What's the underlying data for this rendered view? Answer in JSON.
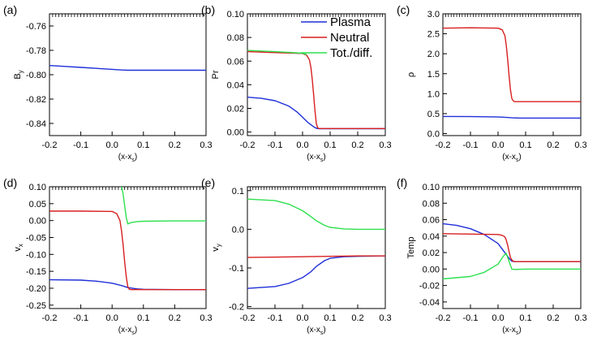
{
  "legend": [
    {
      "name": "Plasma",
      "color": "#1f2fd8"
    },
    {
      "name": "Neutral",
      "color": "#d81f1f"
    },
    {
      "name": "Tot./diff.",
      "color": "#2fe04f"
    }
  ],
  "chart_data": [
    {
      "type": "line",
      "panel_label": "(a)",
      "xlabel": "(x-x",
      "xlabel_sub": "s",
      "xlabel_end": ")",
      "ylabel": "B",
      "ylabel_sub": "y",
      "xlim": [
        -0.2,
        0.3
      ],
      "ylim": [
        -0.85,
        -0.75
      ],
      "xticks": [
        -0.2,
        -0.1,
        0.0,
        0.1,
        0.2,
        0.3
      ],
      "xtick_labels": [
        "-0.2",
        "-0.1",
        "0.0",
        "0.1",
        "0.2",
        "0.3"
      ],
      "yticks": [
        -0.76,
        -0.78,
        -0.8,
        -0.82,
        -0.84
      ],
      "ytick_labels": [
        "-0.76",
        "-0.78",
        "-0.80",
        "-0.82",
        "-0.84"
      ],
      "series": [
        {
          "name": "Plasma",
          "color": "#1f2fd8",
          "x": [
            -0.2,
            -0.15,
            -0.1,
            -0.05,
            0.0,
            0.03,
            0.05,
            0.08,
            0.1,
            0.2,
            0.3
          ],
          "y": [
            -0.7925,
            -0.7932,
            -0.794,
            -0.7948,
            -0.7956,
            -0.7961,
            -0.7963,
            -0.7963,
            -0.7963,
            -0.7963,
            -0.7963
          ]
        }
      ]
    },
    {
      "type": "line",
      "panel_label": "(b)",
      "xlabel": "(x-x",
      "xlabel_sub": "s",
      "xlabel_end": ")",
      "ylabel": "Pr",
      "ylabel_sub": "",
      "xlim": [
        -0.2,
        0.3
      ],
      "ylim": [
        -0.003,
        0.1
      ],
      "xticks": [
        -0.2,
        -0.1,
        0.0,
        0.1,
        0.2,
        0.3
      ],
      "xtick_labels": [
        "-0.2",
        "-0.1",
        "0.0",
        "0.1",
        "0.2",
        "0.3"
      ],
      "yticks": [
        0.0,
        0.02,
        0.04,
        0.06,
        0.08,
        0.1
      ],
      "ytick_labels": [
        "0.00",
        "0.02",
        "0.04",
        "0.06",
        "0.08",
        "0.10"
      ],
      "series": [
        {
          "name": "Plasma",
          "color": "#1f2fd8",
          "x": [
            -0.2,
            -0.15,
            -0.1,
            -0.05,
            -0.02,
            0.0,
            0.02,
            0.04,
            0.05,
            0.06,
            0.1,
            0.2,
            0.3
          ],
          "y": [
            0.0295,
            0.0285,
            0.0265,
            0.022,
            0.017,
            0.0125,
            0.008,
            0.0045,
            0.0032,
            0.0028,
            0.0028,
            0.0028,
            0.0028
          ]
        },
        {
          "name": "Neutral",
          "color": "#d81f1f",
          "x": [
            -0.2,
            -0.1,
            0.0,
            0.015,
            0.025,
            0.03,
            0.035,
            0.04,
            0.045,
            0.05,
            0.055,
            0.06,
            0.1,
            0.2,
            0.3
          ],
          "y": [
            0.068,
            0.0672,
            0.0665,
            0.065,
            0.061,
            0.055,
            0.045,
            0.032,
            0.018,
            0.007,
            0.0035,
            0.003,
            0.003,
            0.003,
            0.003
          ]
        },
        {
          "name": "Tot./diff.",
          "color": "#2fe04f",
          "x": [
            -0.2,
            -0.1,
            0.0,
            0.015
          ],
          "y": [
            0.069,
            0.068,
            0.0667,
            0.0655
          ]
        }
      ]
    },
    {
      "type": "line",
      "panel_label": "(c)",
      "xlabel": "(x-x",
      "xlabel_sub": "s",
      "xlabel_end": ")",
      "ylabel": "ρ",
      "ylabel_sub": "",
      "xlim": [
        -0.2,
        0.3
      ],
      "ylim": [
        -0.05,
        3.0
      ],
      "xticks": [
        -0.2,
        -0.1,
        0.0,
        0.1,
        0.2,
        0.3
      ],
      "xtick_labels": [
        "-0.2",
        "-0.1",
        "0.0",
        "0.1",
        "0.2",
        "0.3"
      ],
      "yticks": [
        0.0,
        0.5,
        1.0,
        1.5,
        2.0,
        2.5,
        3.0
      ],
      "ytick_labels": [
        "0.0",
        "0.5",
        "1.0",
        "1.5",
        "2.0",
        "2.5",
        "3.0"
      ],
      "series": [
        {
          "name": "Plasma",
          "color": "#1f2fd8",
          "x": [
            -0.2,
            -0.1,
            0.0,
            0.03,
            0.05,
            0.08,
            0.2,
            0.3
          ],
          "y": [
            0.43,
            0.425,
            0.415,
            0.405,
            0.395,
            0.39,
            0.39,
            0.39
          ]
        },
        {
          "name": "Neutral",
          "color": "#d81f1f",
          "x": [
            -0.2,
            -0.1,
            0.0,
            0.015,
            0.025,
            0.03,
            0.035,
            0.04,
            0.045,
            0.05,
            0.055,
            0.06,
            0.1,
            0.2,
            0.3
          ],
          "y": [
            2.64,
            2.65,
            2.64,
            2.6,
            2.45,
            2.2,
            1.85,
            1.45,
            1.1,
            0.88,
            0.82,
            0.8,
            0.8,
            0.8,
            0.8
          ]
        }
      ]
    },
    {
      "type": "line",
      "panel_label": "(d)",
      "xlabel": "(x-x",
      "xlabel_sub": "s",
      "xlabel_end": ")",
      "ylabel": "v",
      "ylabel_sub": "x",
      "xlim": [
        -0.2,
        0.3
      ],
      "ylim": [
        -0.26,
        0.1
      ],
      "xticks": [
        -0.2,
        -0.1,
        0.0,
        0.1,
        0.2,
        0.3
      ],
      "xtick_labels": [
        "-0.2",
        "-0.1",
        "0.0",
        "0.1",
        "0.2",
        "0.3"
      ],
      "yticks": [
        0.1,
        0.05,
        0.0,
        -0.05,
        -0.1,
        -0.15,
        -0.2,
        -0.25
      ],
      "ytick_labels": [
        "0.10",
        "0.05",
        "0.00",
        "-0.05",
        "-0.10",
        "-0.15",
        "-0.20",
        "-0.25"
      ],
      "series": [
        {
          "name": "Plasma",
          "color": "#1f2fd8",
          "x": [
            -0.2,
            -0.1,
            -0.05,
            0.0,
            0.03,
            0.05,
            0.08,
            0.1,
            0.2,
            0.3
          ],
          "y": [
            -0.175,
            -0.176,
            -0.179,
            -0.185,
            -0.192,
            -0.198,
            -0.202,
            -0.203,
            -0.204,
            -0.204
          ]
        },
        {
          "name": "Neutral",
          "color": "#d81f1f",
          "x": [
            -0.2,
            -0.1,
            0.0,
            0.015,
            0.025,
            0.03,
            0.035,
            0.04,
            0.045,
            0.05,
            0.055,
            0.06,
            0.1,
            0.2,
            0.3
          ],
          "y": [
            0.028,
            0.028,
            0.027,
            0.02,
            0.0,
            -0.03,
            -0.07,
            -0.12,
            -0.165,
            -0.195,
            -0.203,
            -0.204,
            -0.204,
            -0.204,
            -0.204
          ]
        },
        {
          "name": "Tot./diff.",
          "color": "#2fe04f",
          "x": [
            0.03,
            0.035,
            0.04,
            0.045,
            0.05,
            0.06,
            0.08,
            0.1,
            0.2,
            0.3
          ],
          "y": [
            0.1,
            0.08,
            0.045,
            0.01,
            -0.01,
            -0.006,
            -0.003,
            -0.002,
            -0.001,
            -0.001
          ]
        }
      ]
    },
    {
      "type": "line",
      "panel_label": "(e)",
      "xlabel": "(x-x",
      "xlabel_sub": "s",
      "xlabel_end": ")",
      "ylabel": "v",
      "ylabel_sub": "y",
      "xlim": [
        -0.2,
        0.3
      ],
      "ylim": [
        -0.205,
        0.11
      ],
      "xticks": [
        -0.2,
        -0.1,
        0.0,
        0.1,
        0.2,
        0.3
      ],
      "xtick_labels": [
        "-0.2",
        "-0.1",
        "0.0",
        "0.1",
        "0.2",
        "0.3"
      ],
      "yticks": [
        0.1,
        0.0,
        -0.1,
        -0.2
      ],
      "ytick_labels": [
        "0.1",
        "0.0",
        "-0.1",
        "-0.2"
      ],
      "series": [
        {
          "name": "Plasma",
          "color": "#1f2fd8",
          "x": [
            -0.2,
            -0.1,
            -0.05,
            0.0,
            0.03,
            0.05,
            0.08,
            0.1,
            0.15,
            0.2,
            0.3
          ],
          "y": [
            -0.153,
            -0.148,
            -0.14,
            -0.125,
            -0.11,
            -0.096,
            -0.081,
            -0.075,
            -0.071,
            -0.07,
            -0.069
          ]
        },
        {
          "name": "Neutral",
          "color": "#d81f1f",
          "x": [
            -0.2,
            -0.1,
            0.0,
            0.1,
            0.2,
            0.3
          ],
          "y": [
            -0.073,
            -0.072,
            -0.071,
            -0.07,
            -0.069,
            -0.069
          ]
        },
        {
          "name": "Tot./diff.",
          "color": "#2fe04f",
          "x": [
            -0.2,
            -0.1,
            -0.05,
            0.0,
            0.03,
            0.05,
            0.08,
            0.1,
            0.15,
            0.2,
            0.3
          ],
          "y": [
            0.078,
            0.074,
            0.065,
            0.048,
            0.033,
            0.022,
            0.01,
            0.005,
            0.001,
            0.0,
            0.0
          ]
        }
      ]
    },
    {
      "type": "line",
      "panel_label": "(f)",
      "xlabel": "(x-x",
      "xlabel_sub": "s",
      "xlabel_end": ")",
      "ylabel": "Temp",
      "ylabel_sub": "",
      "xlim": [
        -0.2,
        0.3
      ],
      "ylim": [
        -0.048,
        0.1
      ],
      "xticks": [
        -0.2,
        -0.1,
        0.0,
        0.1,
        0.2,
        0.3
      ],
      "xtick_labels": [
        "-0.2",
        "-0.1",
        "0.0",
        "0.1",
        "0.2",
        "0.3"
      ],
      "yticks": [
        0.1,
        0.08,
        0.06,
        0.04,
        0.02,
        0.0,
        -0.02,
        -0.04
      ],
      "ytick_labels": [
        "0.10",
        "0.08",
        "0.06",
        "0.04",
        "0.02",
        "0.00",
        "-0.02",
        "-0.04"
      ],
      "series": [
        {
          "name": "Plasma",
          "color": "#1f2fd8",
          "x": [
            -0.2,
            -0.15,
            -0.1,
            -0.05,
            0.0,
            0.02,
            0.04,
            0.05,
            0.06,
            0.1,
            0.2,
            0.3
          ],
          "y": [
            0.055,
            0.053,
            0.049,
            0.042,
            0.031,
            0.022,
            0.013,
            0.0095,
            0.009,
            0.009,
            0.009,
            0.009
          ]
        },
        {
          "name": "Neutral",
          "color": "#d81f1f",
          "x": [
            -0.2,
            -0.1,
            0.0,
            0.015,
            0.025,
            0.03,
            0.035,
            0.04,
            0.045,
            0.05,
            0.055,
            0.06,
            0.1,
            0.2,
            0.3
          ],
          "y": [
            0.043,
            0.0425,
            0.042,
            0.041,
            0.039,
            0.035,
            0.029,
            0.021,
            0.014,
            0.011,
            0.0095,
            0.009,
            0.009,
            0.009,
            0.009
          ]
        },
        {
          "name": "Tot./diff.",
          "color": "#2fe04f",
          "x": [
            -0.2,
            -0.1,
            -0.05,
            0.0,
            0.02,
            0.03,
            0.04,
            0.05,
            0.06,
            0.1,
            0.2,
            0.3
          ],
          "y": [
            -0.012,
            -0.009,
            -0.004,
            0.006,
            0.016,
            0.019,
            0.009,
            0.0,
            -0.0005,
            0.0,
            0.0,
            0.0
          ]
        }
      ]
    }
  ]
}
